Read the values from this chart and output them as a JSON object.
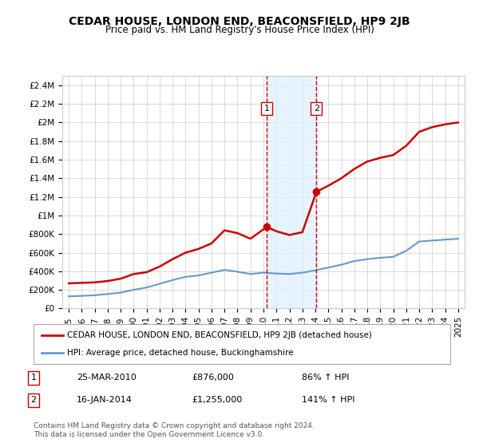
{
  "title": "CEDAR HOUSE, LONDON END, BEACONSFIELD, HP9 2JB",
  "subtitle": "Price paid vs. HM Land Registry's House Price Index (HPI)",
  "ylim": [
    0,
    2500000
  ],
  "yticks": [
    0,
    200000,
    400000,
    600000,
    800000,
    1000000,
    1200000,
    1400000,
    1600000,
    1800000,
    2000000,
    2200000,
    2400000
  ],
  "ytick_labels": [
    "£0",
    "£200K",
    "£400K",
    "£600K",
    "£800K",
    "£1M",
    "£1.2M",
    "£1.4M",
    "£1.6M",
    "£1.8M",
    "£2M",
    "£2.2M",
    "£2.4M"
  ],
  "xmin": 1995,
  "xmax": 2025.5,
  "red_line_x": [
    1995.0,
    1996.0,
    1997.0,
    1998.0,
    1999.0,
    2000.0,
    2001.0,
    2002.0,
    2003.0,
    2004.0,
    2005.0,
    2006.0,
    2007.0,
    2008.0,
    2009.0,
    2010.25,
    2011.0,
    2012.0,
    2013.0,
    2014.08,
    2015.0,
    2016.0,
    2017.0,
    2018.0,
    2019.0,
    2020.0,
    2021.0,
    2022.0,
    2023.0,
    2024.0,
    2025.0
  ],
  "red_line_y": [
    270000,
    275000,
    280000,
    295000,
    320000,
    370000,
    390000,
    450000,
    530000,
    600000,
    640000,
    700000,
    840000,
    810000,
    750000,
    876000,
    830000,
    790000,
    820000,
    1255000,
    1320000,
    1400000,
    1500000,
    1580000,
    1620000,
    1650000,
    1750000,
    1900000,
    1950000,
    1980000,
    2000000
  ],
  "blue_line_x": [
    1995.0,
    1996.0,
    1997.0,
    1998.0,
    1999.0,
    2000.0,
    2001.0,
    2002.0,
    2003.0,
    2004.0,
    2005.0,
    2006.0,
    2007.0,
    2008.0,
    2009.0,
    2010.0,
    2011.0,
    2012.0,
    2013.0,
    2014.0,
    2015.0,
    2016.0,
    2017.0,
    2018.0,
    2019.0,
    2020.0,
    2021.0,
    2022.0,
    2023.0,
    2024.0,
    2025.0
  ],
  "blue_line_y": [
    130000,
    135000,
    142000,
    155000,
    170000,
    200000,
    225000,
    265000,
    305000,
    340000,
    355000,
    385000,
    415000,
    395000,
    370000,
    385000,
    375000,
    370000,
    385000,
    410000,
    440000,
    470000,
    510000,
    530000,
    545000,
    555000,
    620000,
    720000,
    730000,
    740000,
    750000
  ],
  "event1_x": 2010.25,
  "event1_y": 876000,
  "event2_x": 2014.08,
  "event2_y": 1255000,
  "event1_label": "1",
  "event2_label": "2",
  "red_color": "#cc0000",
  "blue_color": "#6699cc",
  "shade_color": "#ddeeff",
  "vline_color": "#cc0000",
  "legend_label_red": "CEDAR HOUSE, LONDON END, BEACONSFIELD, HP9 2JB (detached house)",
  "legend_label_blue": "HPI: Average price, detached house, Buckinghamshire",
  "transaction1_num": "1",
  "transaction1_date": "25-MAR-2010",
  "transaction1_price": "£876,000",
  "transaction1_hpi": "86% ↑ HPI",
  "transaction2_num": "2",
  "transaction2_date": "16-JAN-2014",
  "transaction2_price": "£1,255,000",
  "transaction2_hpi": "141% ↑ HPI",
  "footer": "Contains HM Land Registry data © Crown copyright and database right 2024.\nThis data is licensed under the Open Government Licence v3.0.",
  "background_color": "#ffffff",
  "grid_color": "#cccccc"
}
